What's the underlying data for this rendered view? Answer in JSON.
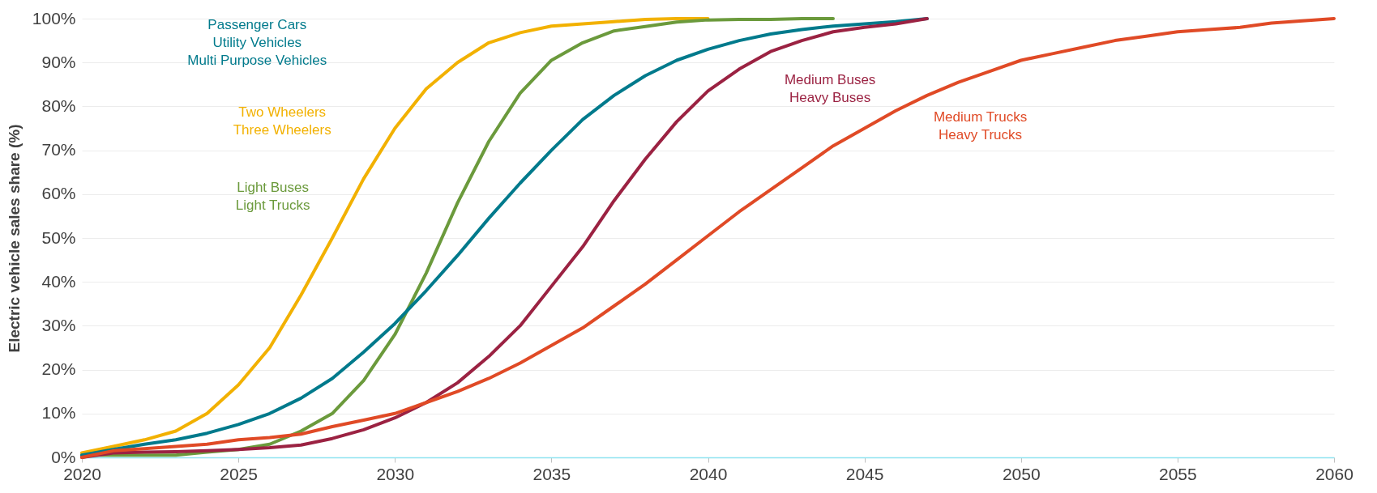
{
  "chart_data": {
    "type": "line",
    "ylabel": "Electric vehicle sales share (%)",
    "xlim": [
      2020,
      2060
    ],
    "xticks": [
      2020,
      2025,
      2030,
      2035,
      2040,
      2045,
      2050,
      2055,
      2060
    ],
    "ylim": [
      0,
      100
    ],
    "yticks": [
      {
        "value": 0,
        "label": "0%"
      },
      {
        "value": 10,
        "label": "10%"
      },
      {
        "value": 20,
        "label": "20%"
      },
      {
        "value": 30,
        "label": "30%"
      },
      {
        "value": 40,
        "label": "40%"
      },
      {
        "value": 50,
        "label": "50%"
      },
      {
        "value": 60,
        "label": "60%"
      },
      {
        "value": 70,
        "label": "70%"
      },
      {
        "value": 80,
        "label": "80%"
      },
      {
        "value": 90,
        "label": "90%"
      },
      {
        "value": 100,
        "label": "100%"
      }
    ],
    "grid": "y",
    "legend": false,
    "marker": "none",
    "line_style": "solid",
    "series": [
      {
        "name": "Two Wheelers\nThree Wheelers",
        "color": "#f2b100",
        "x": [
          2020,
          2021,
          2022,
          2023,
          2024,
          2025,
          2026,
          2027,
          2028,
          2029,
          2030,
          2031,
          2032,
          2033,
          2034,
          2035,
          2036,
          2037,
          2038,
          2039,
          2040
        ],
        "values": [
          1,
          2.5,
          4,
          6,
          10,
          16.5,
          25,
          37,
          50,
          63.5,
          75,
          84,
          90,
          94.5,
          96.8,
          98.3,
          98.8,
          99.3,
          99.8,
          100,
          100
        ]
      },
      {
        "name": "Light Buses\nLight Trucks",
        "color": "#6b9a3c",
        "x": [
          2020,
          2021,
          2022,
          2023,
          2024,
          2025,
          2026,
          2027,
          2028,
          2029,
          2030,
          2031,
          2032,
          2033,
          2034,
          2035,
          2036,
          2037,
          2038,
          2039,
          2040,
          2041,
          2042,
          2043,
          2044
        ],
        "values": [
          0.5,
          0.5,
          0.5,
          0.5,
          1.2,
          1.8,
          3,
          6,
          10,
          17.5,
          28,
          42,
          58,
          72,
          83,
          90.5,
          94.5,
          97.2,
          98.2,
          99.2,
          99.7,
          99.8,
          99.8,
          100,
          100
        ]
      },
      {
        "name": "Passenger Cars\nUtility Vehicles\nMulti Purpose Vehicles",
        "color": "#007a8c",
        "x": [
          2020,
          2021,
          2022,
          2023,
          2024,
          2025,
          2026,
          2027,
          2028,
          2029,
          2030,
          2031,
          2032,
          2033,
          2034,
          2035,
          2036,
          2037,
          2038,
          2039,
          2040,
          2041,
          2042,
          2043,
          2044,
          2045,
          2046,
          2047
        ],
        "values": [
          0.5,
          1.8,
          3,
          4,
          5.5,
          7.5,
          10,
          13.5,
          18,
          24,
          30.5,
          38,
          46,
          54.5,
          62.5,
          70,
          77,
          82.5,
          87,
          90.5,
          93,
          95,
          96.5,
          97.5,
          98.3,
          98.8,
          99.3,
          100
        ]
      },
      {
        "name": "Medium Buses\nHeavy Buses",
        "color": "#9b2242",
        "x": [
          2020,
          2021,
          2022,
          2023,
          2024,
          2025,
          2026,
          2027,
          2028,
          2029,
          2030,
          2031,
          2032,
          2033,
          2034,
          2035,
          2036,
          2037,
          2038,
          2039,
          2040,
          2041,
          2042,
          2043,
          2044,
          2045,
          2046,
          2047
        ],
        "values": [
          0,
          1,
          1.2,
          1.3,
          1.5,
          1.8,
          2.2,
          2.8,
          4.3,
          6.3,
          9,
          12.5,
          17,
          23,
          30,
          39,
          48,
          58.5,
          68,
          76.5,
          83.5,
          88.5,
          92.5,
          95,
          97,
          98,
          98.8,
          100
        ]
      },
      {
        "name": "Medium Trucks\nHeavy Trucks",
        "color": "#e04a26",
        "x": [
          2020,
          2021,
          2022,
          2023,
          2024,
          2025,
          2026,
          2027,
          2028,
          2029,
          2030,
          2031,
          2032,
          2033,
          2034,
          2035,
          2036,
          2037,
          2038,
          2039,
          2040,
          2041,
          2042,
          2043,
          2044,
          2045,
          2046,
          2047,
          2048,
          2049,
          2050,
          2051,
          2052,
          2053,
          2054,
          2055,
          2056,
          2057,
          2058,
          2059,
          2060
        ],
        "values": [
          0,
          1.5,
          2,
          2.5,
          3,
          4,
          4.5,
          5.3,
          7,
          8.5,
          10,
          12.5,
          15,
          18,
          21.5,
          25.5,
          29.5,
          34.5,
          39.5,
          45,
          50.5,
          56,
          61,
          66,
          71,
          75,
          79,
          82.5,
          85.5,
          88,
          90.5,
          92,
          93.5,
          95,
          96,
          97,
          97.5,
          98,
          99,
          99.5,
          100
        ]
      }
    ]
  }
}
